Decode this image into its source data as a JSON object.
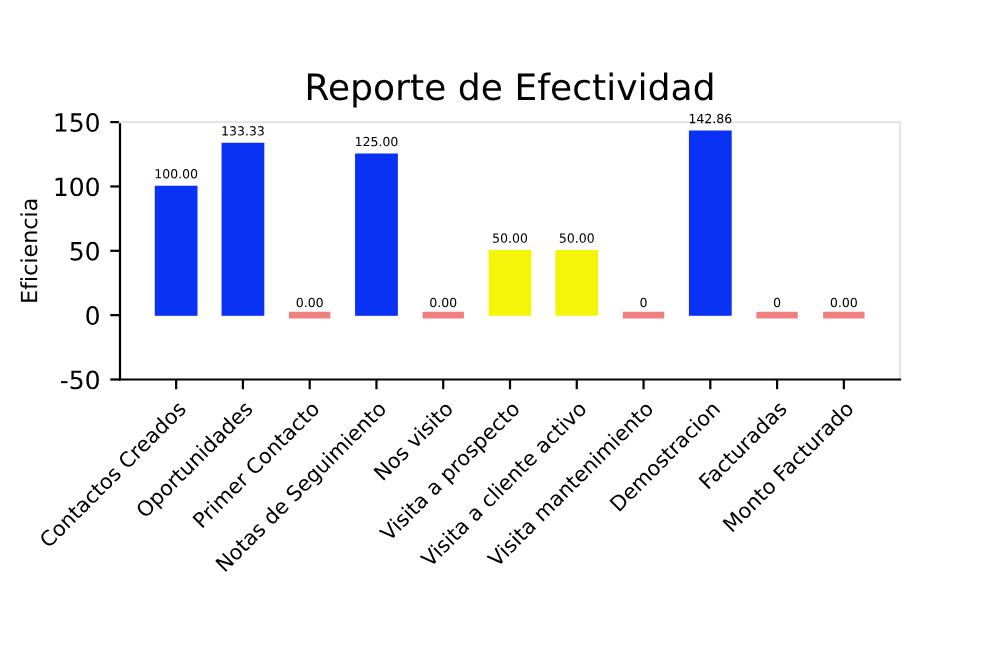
{
  "chart_data": {
    "type": "bar",
    "title": "Reporte de Efectividad",
    "ylabel": "Eficiencia",
    "categories": [
      "Contactos Creados",
      "Oportunidades",
      "Primer Contacto",
      "Notas de Seguimiento",
      "Nos visito",
      "Visita a prospecto",
      "Visita a cliente activo",
      "Visita mantenimiento",
      "Demostracion",
      "Facturadas",
      "Monto Facturado"
    ],
    "values": [
      100,
      133.33,
      0,
      125,
      0,
      50,
      50,
      0,
      142.86,
      0,
      0
    ],
    "value_labels": [
      "100.00",
      "133.33",
      "0.00",
      "125.00",
      "0.00",
      "50.00",
      "50.00",
      "0",
      "142.86",
      "0",
      "0.00"
    ],
    "colors": [
      "#0a32f5",
      "#0a32f5",
      "#f08080",
      "#0a32f5",
      "#f08080",
      "#f5f50a",
      "#f5f50a",
      "#f08080",
      "#0a32f5",
      "#f08080",
      "#f08080"
    ],
    "ylim": [
      -50,
      150
    ],
    "yticks": [
      -50,
      0,
      50,
      100,
      150
    ],
    "grid": false
  }
}
